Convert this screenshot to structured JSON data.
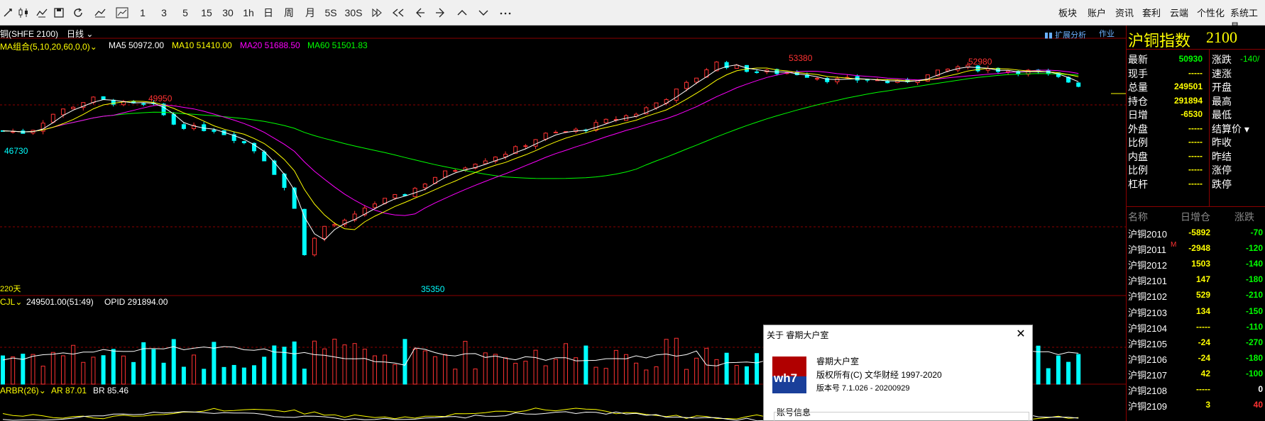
{
  "toolbar": {
    "periods": [
      "1",
      "3",
      "5",
      "15",
      "30",
      "1h",
      "日",
      "周",
      "月",
      "5S",
      "30S"
    ],
    "menus": [
      "板块",
      "账户",
      "资讯",
      "套利",
      "云端",
      "个性化",
      "系统工具"
    ]
  },
  "chart_header": {
    "symbol": "铜(SHFE 2100)",
    "period": "日线",
    "ma_group": "MA组合(5,10,20,60,0,0)",
    "ma5": "MA5 50972.00",
    "ma10": "MA10 51410.00",
    "ma20": "MA20 51688.50",
    "ma60": "MA60 51501.83",
    "ext_analysis": "扩展分析",
    "ext_right": "作业",
    "days_label": "220天"
  },
  "price_labels": {
    "high1": "49950",
    "low1": "46730",
    "low2": "35350",
    "high2": "53380",
    "high3": "52980"
  },
  "volume_header": {
    "name": "CJL",
    "value": "249501.00(51:49)",
    "opid": "OPID 291894.00"
  },
  "arbr_header": {
    "name": "ARBR(26)",
    "ar": "AR 87.01",
    "br": "BR 85.46"
  },
  "colors": {
    "up": "#ff3232",
    "down": "#00ffff",
    "ma5": "#ffffff",
    "ma10": "#ffff00",
    "ma20": "#ff00ff",
    "ma60": "#00ff00",
    "divider": "#8b0000"
  },
  "quote_panel": {
    "title": "沪铜指数",
    "code": "2100",
    "left_rows": [
      {
        "label": "最新",
        "value": "50930",
        "color": "#00ff00"
      },
      {
        "label": "现手",
        "value": "-----",
        "color": "#ffff00"
      },
      {
        "label": "总量",
        "value": "249501",
        "color": "#ffff00"
      },
      {
        "label": "持仓",
        "value": "291894",
        "color": "#ffff00"
      },
      {
        "label": "日增",
        "value": "-6530",
        "color": "#ffff00"
      },
      {
        "label": "外盘",
        "value": "-----",
        "color": "#ffff00"
      },
      {
        "label": "比例",
        "value": "-----",
        "color": "#ffff00"
      },
      {
        "label": "内盘",
        "value": "-----",
        "color": "#ffff00"
      },
      {
        "label": "比例",
        "value": "-----",
        "color": "#ffff00"
      },
      {
        "label": "杠杆",
        "value": "-----",
        "color": "#ffff00"
      }
    ],
    "right_rows": [
      {
        "label": "涨跌",
        "value": "-140/",
        "color": "#00ff00"
      },
      {
        "label": "速涨",
        "value": "",
        "color": "#ffffff"
      },
      {
        "label": "开盘",
        "value": "",
        "color": "#ffffff"
      },
      {
        "label": "最高",
        "value": "",
        "color": "#ffffff"
      },
      {
        "label": "最低",
        "value": "",
        "color": "#ffffff"
      },
      {
        "label": "结算价",
        "value": "",
        "color": "#ffffff"
      },
      {
        "label": "昨收",
        "value": "",
        "color": "#ffffff"
      },
      {
        "label": "昨结",
        "value": "",
        "color": "#ffffff"
      },
      {
        "label": "涨停",
        "value": "",
        "color": "#ffffff"
      },
      {
        "label": "跌停",
        "value": "",
        "color": "#ffffff"
      }
    ],
    "list_headers": [
      "名称",
      "日增仓",
      "涨跌"
    ],
    "contracts": [
      {
        "name": "沪铜2010",
        "oi_change": "-5892",
        "change": "-70",
        "oi_color": "#ffff00",
        "ch_color": "#00ff00",
        "flag": ""
      },
      {
        "name": "沪铜2011",
        "oi_change": "-2948",
        "change": "-120",
        "oi_color": "#ffff00",
        "ch_color": "#00ff00",
        "flag": "M"
      },
      {
        "name": "沪铜2012",
        "oi_change": "1503",
        "change": "-140",
        "oi_color": "#ffff00",
        "ch_color": "#00ff00",
        "flag": ""
      },
      {
        "name": "沪铜2101",
        "oi_change": "147",
        "change": "-180",
        "oi_color": "#ffff00",
        "ch_color": "#00ff00",
        "flag": ""
      },
      {
        "name": "沪铜2102",
        "oi_change": "529",
        "change": "-210",
        "oi_color": "#ffff00",
        "ch_color": "#00ff00",
        "flag": ""
      },
      {
        "name": "沪铜2103",
        "oi_change": "134",
        "change": "-150",
        "oi_color": "#ffff00",
        "ch_color": "#00ff00",
        "flag": ""
      },
      {
        "name": "沪铜2104",
        "oi_change": "-----",
        "change": "-110",
        "oi_color": "#ffff00",
        "ch_color": "#00ff00",
        "flag": ""
      },
      {
        "name": "沪铜2105",
        "oi_change": "-24",
        "change": "-270",
        "oi_color": "#ffff00",
        "ch_color": "#00ff00",
        "flag": ""
      },
      {
        "name": "沪铜2106",
        "oi_change": "-24",
        "change": "-180",
        "oi_color": "#ffff00",
        "ch_color": "#00ff00",
        "flag": ""
      },
      {
        "name": "沪铜2107",
        "oi_change": "42",
        "change": "-100",
        "oi_color": "#ffff00",
        "ch_color": "#00ff00",
        "flag": ""
      },
      {
        "name": "沪铜2108",
        "oi_change": "-----",
        "change": "0",
        "oi_color": "#ffff00",
        "ch_color": "#ffffff",
        "flag": ""
      },
      {
        "name": "沪铜2109",
        "oi_change": "3",
        "change": "40",
        "oi_color": "#ffff00",
        "ch_color": "#ff3232",
        "flag": ""
      }
    ]
  },
  "about_dialog": {
    "title": "关于 睿期大户室",
    "product": "睿期大户室",
    "copyright": "版权所有(C)  文华财经        1997-2020",
    "version": "版本号  7.1.026 - 20200929",
    "account_section": "账号信息",
    "logo_text": "wh7"
  }
}
